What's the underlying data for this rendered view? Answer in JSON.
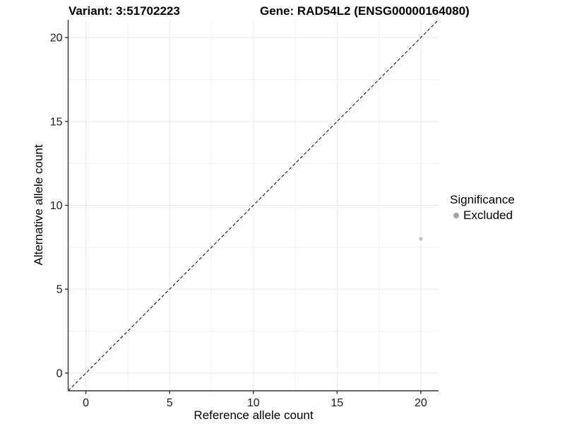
{
  "figure": {
    "title_left": "Variant: 3:51702223",
    "title_right": "Gene: RAD54L2 (ENSG00000164080)"
  },
  "chart_data": {
    "type": "scatter",
    "title": "Variant: 3:51702223   Gene: RAD54L2 (ENSG00000164080)",
    "xlabel": "Reference allele count",
    "ylabel": "Alternative allele count",
    "xlim": [
      -1.06,
      21.06
    ],
    "ylim": [
      -1.06,
      21.06
    ],
    "xticks": [
      0,
      5,
      10,
      15,
      20
    ],
    "yticks": [
      0,
      5,
      10,
      15,
      20
    ],
    "minor_gridlines": [
      2.5,
      7.5,
      12.5,
      17.5
    ],
    "grid": "major and minor, light grey on white panel",
    "identity_line": {
      "slope": 1,
      "intercept": 0,
      "style": "dashed",
      "color": "#000000"
    },
    "series": [
      {
        "name": "Excluded",
        "marker": "circle",
        "point_color": "#c6c6c6",
        "point_radius": 2.8,
        "points": [
          {
            "x": 20,
            "y": 8
          }
        ]
      }
    ],
    "legend": {
      "title": "Significance",
      "position": "right",
      "entries": [
        {
          "label": "Excluded",
          "color": "#a3a3a3",
          "marker": "circle"
        }
      ]
    },
    "colors": {
      "axis_line": "#333333",
      "tick_mark": "#333333",
      "tick_label": "#1a1a1a",
      "grid_major": "#e7e7e7",
      "grid_minor": "#f1f1f1",
      "background": "#ffffff"
    }
  }
}
